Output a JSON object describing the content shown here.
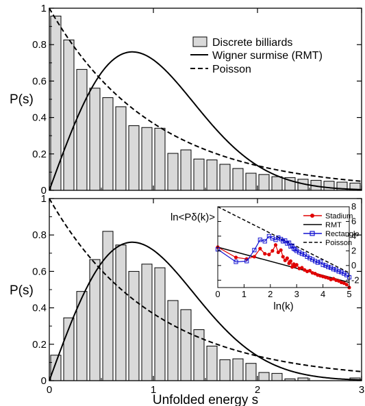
{
  "chart_data": [
    {
      "type": "bar",
      "panel": "top",
      "ylabel": "P(s)",
      "xlim": [
        0,
        3
      ],
      "ylim": [
        0,
        1
      ],
      "x_ticks": [
        "0",
        "1",
        "2",
        "3"
      ],
      "y_ticks": [
        "0",
        "0.2",
        "0.4",
        "0.6",
        "0.8",
        "1"
      ],
      "bin_width": 0.125,
      "bins": [
        0.0625,
        0.1875,
        0.3125,
        0.4375,
        0.5625,
        0.6875,
        0.8125,
        0.9375,
        1.0625,
        1.1875,
        1.3125,
        1.4375,
        1.5625,
        1.6875,
        1.8125,
        1.9375,
        2.0625,
        2.1875,
        2.3125,
        2.4375,
        2.5625,
        2.6875,
        2.8125,
        2.9375
      ],
      "values": [
        0.957,
        0.826,
        0.664,
        0.561,
        0.509,
        0.459,
        0.355,
        0.345,
        0.341,
        0.203,
        0.222,
        0.172,
        0.167,
        0.143,
        0.12,
        0.094,
        0.087,
        0.075,
        0.07,
        0.061,
        0.055,
        0.05,
        0.045,
        0.04
      ],
      "legend": {
        "position": "top-right",
        "entries": [
          {
            "label": "Discrete billiards",
            "style": "bar"
          },
          {
            "label": "Wigner surmise (RMT)",
            "style": "solid"
          },
          {
            "label": "Poisson",
            "style": "dashed"
          }
        ]
      },
      "curves": [
        {
          "name": "Wigner surmise (RMT)",
          "style": "solid",
          "formula": "(pi/2) s exp(-pi s^2/4)"
        },
        {
          "name": "Poisson",
          "style": "dashed",
          "formula": "exp(-s)"
        }
      ]
    },
    {
      "type": "bar",
      "panel": "bottom",
      "ylabel": "P(s)",
      "xlabel": "Unfolded energy s",
      "xlim": [
        0,
        3
      ],
      "ylim": [
        0,
        1
      ],
      "x_ticks": [
        "0",
        "1",
        "2",
        "3"
      ],
      "y_ticks": [
        "0",
        "0.2",
        "0.4",
        "0.6",
        "0.8",
        "1"
      ],
      "bin_width": 0.125,
      "bins": [
        0.0625,
        0.1875,
        0.3125,
        0.4375,
        0.5625,
        0.6875,
        0.8125,
        0.9375,
        1.0625,
        1.1875,
        1.3125,
        1.4375,
        1.5625,
        1.6875,
        1.8125,
        1.9375,
        2.0625,
        2.1875,
        2.3125,
        2.4375,
        2.5625,
        2.6875,
        2.8125,
        2.9375
      ],
      "values": [
        0.14,
        0.345,
        0.49,
        0.665,
        0.82,
        0.745,
        0.6,
        0.64,
        0.62,
        0.44,
        0.39,
        0.28,
        0.19,
        0.115,
        0.12,
        0.095,
        0.045,
        0.04,
        0.01,
        0.015,
        0.0,
        0.0,
        0.0,
        0.015
      ],
      "curves": [
        {
          "name": "Wigner surmise (RMT)",
          "style": "solid",
          "formula": "(pi/2) s exp(-pi s^2/4)"
        },
        {
          "name": "Poisson",
          "style": "dashed",
          "formula": "exp(-s)"
        }
      ]
    },
    {
      "type": "line",
      "panel": "inset",
      "ylabel": "ln<Pδ(k)>",
      "xlabel": "ln(k)",
      "xlim": [
        0,
        5
      ],
      "ylim": [
        -3,
        8
      ],
      "x_ticks": [
        "0",
        "1",
        "2",
        "3",
        "4",
        "5"
      ],
      "y_ticks": [
        "-2",
        "0",
        "2",
        "4",
        "6",
        "8"
      ],
      "legend": {
        "position": "top-right",
        "entries": [
          {
            "label": "Stadium",
            "color": "#e00000",
            "style": "circles"
          },
          {
            "label": "RMT",
            "color": "#000000",
            "style": "solid"
          },
          {
            "label": "Rectangle",
            "color": "#1010d0",
            "style": "squares"
          },
          {
            "label": "Poisson",
            "color": "#000000",
            "style": "dashed"
          }
        ]
      },
      "series": [
        {
          "name": "RMT",
          "style": "solid",
          "x": [
            0,
            5
          ],
          "y": [
            2.5,
            -2.3
          ]
        },
        {
          "name": "Poisson",
          "style": "dashed",
          "x": [
            0,
            5
          ],
          "y": [
            8,
            -1
          ]
        },
        {
          "name": "Stadium",
          "x": [
            0,
            0.69,
            1.1,
            1.39,
            1.61,
            1.79,
            1.95,
            2.08,
            2.2,
            2.3,
            2.4,
            2.48,
            2.56,
            2.64,
            2.71,
            2.77,
            2.83,
            2.89,
            2.94,
            3.0,
            3.1,
            3.2,
            3.3,
            3.4,
            3.5,
            3.6,
            3.7,
            3.8,
            3.9,
            4.0,
            4.1,
            4.2,
            4.3,
            4.4,
            4.5,
            4.6,
            4.7,
            4.8,
            4.9,
            5.0
          ],
          "y": [
            2.5,
            1.1,
            0.9,
            1.2,
            2.3,
            1.6,
            1.5,
            2.0,
            2.8,
            1.8,
            2.1,
            1.2,
            0.7,
            1.0,
            0.3,
            0.6,
            -0.2,
            0.2,
            -0.1,
            0.1,
            -0.4,
            -0.3,
            -0.6,
            -0.8,
            -0.7,
            -1.0,
            -1.1,
            -1.3,
            -1.4,
            -1.5,
            -1.6,
            -1.7,
            -1.9,
            -1.8,
            -2.0,
            -2.1,
            -2.3,
            -2.4,
            -2.6,
            -3.0
          ]
        },
        {
          "name": "Rectangle",
          "x": [
            0,
            0.69,
            1.1,
            1.39,
            1.61,
            1.79,
            1.95,
            2.08,
            2.2,
            2.3,
            2.4,
            2.48,
            2.56,
            2.64,
            2.71,
            2.77,
            2.83,
            2.89,
            2.94,
            3.0,
            3.1,
            3.2,
            3.3,
            3.4,
            3.5,
            3.6,
            3.7,
            3.8,
            3.9,
            4.0,
            4.1,
            4.2,
            4.3,
            4.4,
            4.5,
            4.6,
            4.7,
            4.8,
            4.9,
            5.0
          ],
          "y": [
            2.2,
            0.5,
            0.6,
            2.1,
            3.5,
            3.3,
            4.0,
            3.7,
            3.5,
            3.8,
            3.6,
            3.3,
            3.4,
            3.0,
            3.1,
            2.6,
            2.7,
            2.3,
            2.2,
            2.0,
            1.8,
            1.6,
            1.5,
            1.2,
            1.0,
            0.8,
            0.6,
            0.4,
            0.5,
            0.1,
            0.0,
            -0.2,
            -0.3,
            -0.5,
            -0.6,
            -0.8,
            -0.9,
            -1.1,
            -1.3,
            -1.6
          ]
        }
      ]
    }
  ]
}
